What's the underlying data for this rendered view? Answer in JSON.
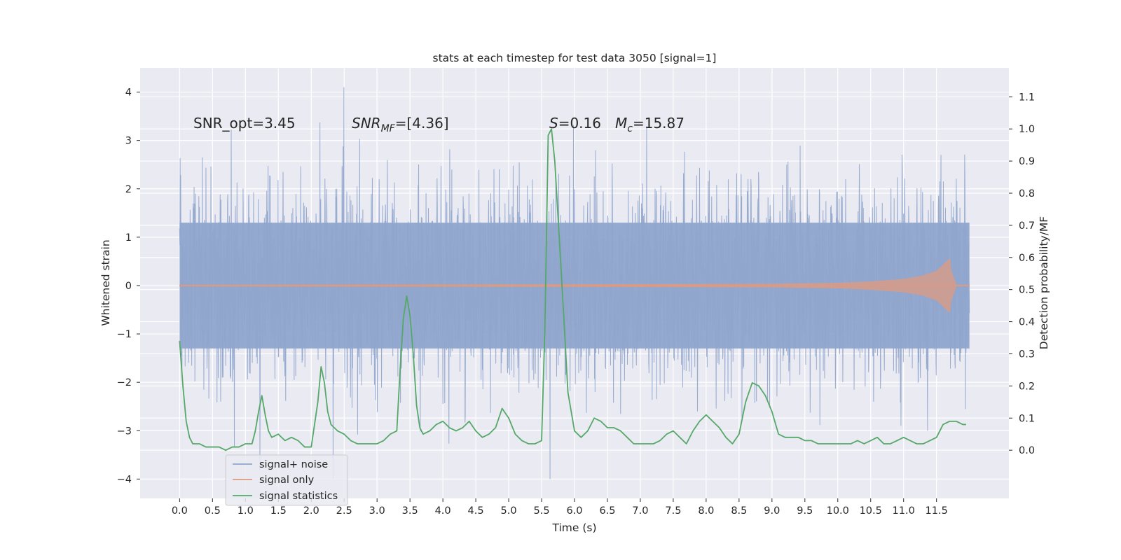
{
  "chart_data": {
    "type": "line",
    "title": "stats at each timestep for test data 3050 [signal=1]",
    "xlabel": "Time (s)",
    "ylabel": "Whitened strain",
    "ylabel_right": "Detection probability/MF",
    "xlim": [
      -0.6,
      12.6
    ],
    "ylim": [
      -4.4,
      4.5
    ],
    "ylim_right": [
      -0.15,
      1.19
    ],
    "x_ticks": [
      "0.0",
      "0.5",
      "1.0",
      "1.5",
      "2.0",
      "2.5",
      "3.0",
      "3.5",
      "4.0",
      "4.5",
      "5.0",
      "5.5",
      "6.0",
      "6.5",
      "7.0",
      "7.5",
      "8.0",
      "8.5",
      "9.0",
      "9.5",
      "10.0",
      "10.5",
      "11.0",
      "11.5"
    ],
    "y_ticks": [
      "4",
      "3",
      "2",
      "1",
      "0",
      "−1",
      "−2",
      "−3",
      "−4"
    ],
    "y_ticks_right": [
      "1.1",
      "1.0",
      "0.9",
      "0.8",
      "0.7",
      "0.6",
      "0.5",
      "0.4",
      "0.3",
      "0.2",
      "0.1",
      "0.0"
    ],
    "grid": true,
    "legend_position": "lower-left",
    "annotations": {
      "snr_opt": "SNR_opt=3.45",
      "snr_mf_main": "SNR",
      "snr_mf_sub": "MF",
      "snr_mf_value": "=[4.36]",
      "s_main": "S",
      "s_value": "=0.16",
      "mc_main": "M",
      "mc_sub": "c",
      "mc_value": "=15.87"
    },
    "series": [
      {
        "name": "signal+ noise",
        "color": "#8fa5cc",
        "x_range": [
          0.0,
          12.0
        ],
        "envelope_typical": [
          -1.9,
          2.3
        ],
        "extremes_min": -4.0,
        "extremes_max": 4.1
      },
      {
        "name": "signal only",
        "color": "#dd9a82",
        "x": [
          0.0,
          6.0,
          9.0,
          10.0,
          10.5,
          11.0,
          11.3,
          11.5,
          11.6,
          11.65,
          11.7,
          11.72,
          11.8,
          12.0
        ],
        "amplitude": [
          0.01,
          0.02,
          0.03,
          0.05,
          0.08,
          0.13,
          0.2,
          0.3,
          0.42,
          0.5,
          0.55,
          0.3,
          0.01,
          0.01
        ]
      },
      {
        "name": "signal statistics",
        "color": "#55a868",
        "axis": "right",
        "x": [
          0.0,
          0.05,
          0.1,
          0.15,
          0.2,
          0.25,
          0.3,
          0.4,
          0.5,
          0.6,
          0.7,
          0.8,
          0.9,
          1.0,
          1.1,
          1.15,
          1.2,
          1.25,
          1.3,
          1.35,
          1.4,
          1.5,
          1.6,
          1.7,
          1.8,
          1.9,
          2.0,
          2.1,
          2.15,
          2.2,
          2.25,
          2.3,
          2.35,
          2.4,
          2.5,
          2.6,
          2.7,
          2.8,
          2.9,
          3.0,
          3.1,
          3.2,
          3.3,
          3.35,
          3.4,
          3.45,
          3.5,
          3.55,
          3.6,
          3.65,
          3.7,
          3.8,
          3.9,
          4.0,
          4.1,
          4.2,
          4.3,
          4.4,
          4.5,
          4.6,
          4.7,
          4.8,
          4.9,
          5.0,
          5.1,
          5.2,
          5.3,
          5.4,
          5.5,
          5.55,
          5.6,
          5.65,
          5.7,
          5.8,
          5.9,
          6.0,
          6.1,
          6.2,
          6.3,
          6.4,
          6.5,
          6.6,
          6.7,
          6.8,
          6.9,
          7.0,
          7.1,
          7.2,
          7.3,
          7.4,
          7.5,
          7.6,
          7.7,
          7.8,
          7.9,
          8.0,
          8.1,
          8.2,
          8.3,
          8.4,
          8.5,
          8.6,
          8.7,
          8.8,
          8.9,
          9.0,
          9.1,
          9.2,
          9.3,
          9.4,
          9.5,
          9.6,
          9.7,
          9.8,
          9.9,
          10.0,
          10.1,
          10.2,
          10.3,
          10.4,
          10.5,
          10.6,
          10.7,
          10.8,
          10.9,
          11.0,
          11.1,
          11.2,
          11.3,
          11.4,
          11.5,
          11.6,
          11.7,
          11.8,
          11.9,
          11.95
        ],
        "y": [
          0.34,
          0.2,
          0.09,
          0.04,
          0.02,
          0.02,
          0.02,
          0.01,
          0.01,
          0.01,
          0.0,
          0.01,
          0.01,
          0.02,
          0.02,
          0.06,
          0.12,
          0.17,
          0.11,
          0.06,
          0.04,
          0.05,
          0.03,
          0.04,
          0.03,
          0.01,
          0.01,
          0.15,
          0.26,
          0.21,
          0.12,
          0.08,
          0.07,
          0.06,
          0.05,
          0.03,
          0.02,
          0.02,
          0.02,
          0.02,
          0.03,
          0.05,
          0.06,
          0.25,
          0.41,
          0.48,
          0.42,
          0.3,
          0.14,
          0.07,
          0.05,
          0.06,
          0.08,
          0.09,
          0.07,
          0.06,
          0.07,
          0.09,
          0.06,
          0.04,
          0.05,
          0.07,
          0.13,
          0.1,
          0.05,
          0.03,
          0.02,
          0.02,
          0.03,
          0.38,
          0.98,
          1.0,
          0.9,
          0.55,
          0.18,
          0.06,
          0.04,
          0.06,
          0.1,
          0.09,
          0.07,
          0.07,
          0.06,
          0.04,
          0.02,
          0.02,
          0.02,
          0.02,
          0.03,
          0.05,
          0.06,
          0.04,
          0.02,
          0.06,
          0.09,
          0.11,
          0.09,
          0.07,
          0.04,
          0.02,
          0.05,
          0.15,
          0.21,
          0.2,
          0.17,
          0.12,
          0.05,
          0.04,
          0.04,
          0.04,
          0.03,
          0.03,
          0.02,
          0.02,
          0.02,
          0.02,
          0.02,
          0.02,
          0.03,
          0.02,
          0.03,
          0.04,
          0.02,
          0.02,
          0.03,
          0.04,
          0.03,
          0.02,
          0.02,
          0.03,
          0.04,
          0.08,
          0.09,
          0.09,
          0.08,
          0.08
        ]
      }
    ]
  }
}
